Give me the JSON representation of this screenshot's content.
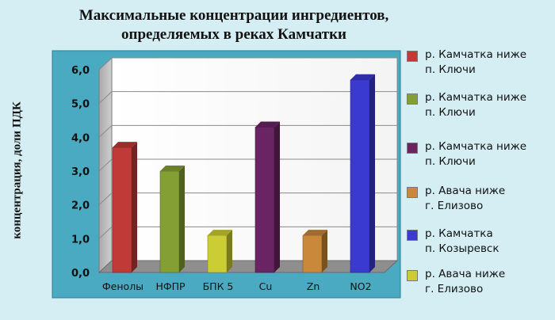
{
  "chart_data": {
    "type": "bar",
    "title_lines": [
      "Максимальные концентрации ингредиентов,",
      "определяемых в реках Камчатки"
    ],
    "ylabel": "концентрация,  доли ПДК",
    "xlabel": "",
    "ylim": [
      0,
      6
    ],
    "yticks": [
      "0,0",
      "1,0",
      "2,0",
      "3,0",
      "4,0",
      "5,0",
      "6,0"
    ],
    "grid": true,
    "legend_position": "right",
    "categories": [
      "Фенолы",
      "НФПР",
      "БПК 5",
      "Cu",
      "Zn",
      "NO2"
    ],
    "values": [
      3.7,
      3.0,
      1.1,
      4.3,
      1.1,
      5.7
    ],
    "colors": [
      "#c03a38",
      "#84a035",
      "#cccc35",
      "#6a2463",
      "#c9883a",
      "#3a3ad0"
    ],
    "legend": [
      {
        "label": "р. Камчатка ниже\nп. Ключи",
        "color": "#c03a38"
      },
      {
        "label": "р. Камчатка ниже\n п. Ключи",
        "color": "#84a035"
      },
      {
        "label": "р. Камчатка ниже\nп. Ключи",
        "color": "#6a2463"
      },
      {
        "label": "р. Авача ниже\nг. Елизово",
        "color": "#c9883a"
      },
      {
        "label": "р. Камчатка\nп. Козыревск",
        "color": "#3a3ad0"
      },
      {
        "label": "р. Авача ниже\nг. Елизово",
        "color": "#cccc35"
      }
    ]
  }
}
